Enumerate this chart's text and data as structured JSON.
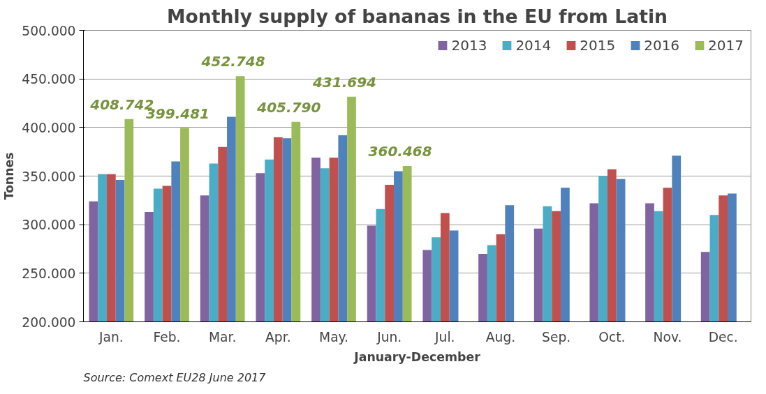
{
  "chart_data": {
    "type": "bar",
    "title": "Monthly supply of bananas in the EU from Latin",
    "xlabel": "January-December",
    "ylabel": "Tonnes",
    "annotations": [
      "Source: Comext EU28 June 2017"
    ],
    "categories": [
      "Jan.",
      "Feb.",
      "Mar.",
      "Apr.",
      "May.",
      "Jun.",
      "Jul.",
      "Aug.",
      "Sep.",
      "Oct.",
      "Nov.",
      "Dec."
    ],
    "series": [
      {
        "name": "2013",
        "color": "#8064a2",
        "values": [
          324000,
          313000,
          330000,
          353000,
          369000,
          299000,
          274000,
          270000,
          296000,
          322000,
          322000,
          272000
        ]
      },
      {
        "name": "2014",
        "color": "#4bacc6",
        "values": [
          352000,
          337000,
          363000,
          367000,
          358000,
          316000,
          287000,
          279000,
          319000,
          350000,
          314000,
          310000
        ]
      },
      {
        "name": "2015",
        "color": "#c0504d",
        "values": [
          352000,
          340000,
          380000,
          390000,
          369000,
          341000,
          312000,
          290000,
          314000,
          357000,
          338000,
          330000
        ]
      },
      {
        "name": "2016",
        "color": "#4f81bd",
        "values": [
          346000,
          365000,
          411000,
          389000,
          392000,
          355000,
          294000,
          320000,
          338000,
          347000,
          371000,
          332000
        ]
      },
      {
        "name": "2017",
        "color": "#9bbb59",
        "values": [
          408742,
          399481,
          452748,
          405790,
          431694,
          360468,
          null,
          null,
          null,
          null,
          null,
          null
        ],
        "value_labels": [
          "408.742",
          "399.481",
          "452.748",
          "405.790",
          "431.694",
          "360.468",
          null,
          null,
          null,
          null,
          null,
          null
        ]
      }
    ],
    "ylim": [
      200000,
      500000
    ],
    "yticks": [
      {
        "value": 200000,
        "label": "200.000"
      },
      {
        "value": 250000,
        "label": "250.000"
      },
      {
        "value": 300000,
        "label": "300.000"
      },
      {
        "value": 350000,
        "label": "350.000"
      },
      {
        "value": 400000,
        "label": "400.000"
      },
      {
        "value": 450000,
        "label": "450.000"
      },
      {
        "value": 500000,
        "label": "500.000"
      }
    ],
    "grid": "y",
    "legend": "top right"
  }
}
